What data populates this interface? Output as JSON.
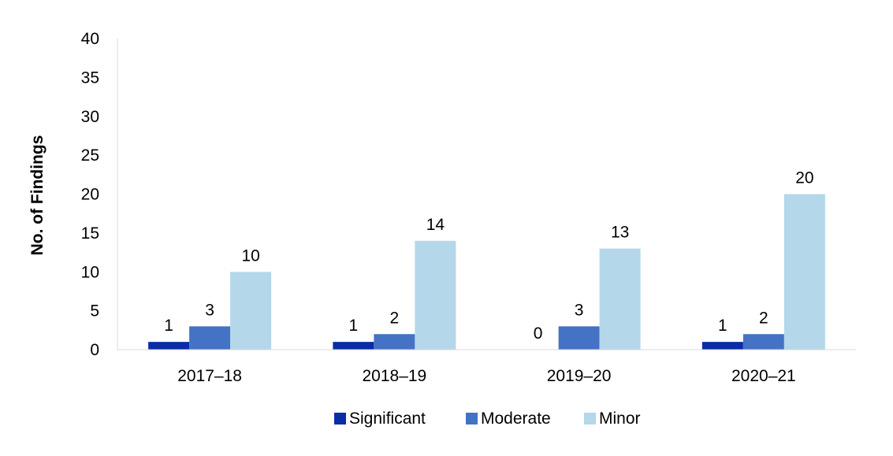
{
  "chart_data": {
    "type": "bar",
    "title": "",
    "xlabel": "",
    "ylabel": "No. of Findings",
    "ylim": [
      0,
      40
    ],
    "yticks": [
      0,
      5,
      10,
      15,
      20,
      25,
      30,
      35,
      40
    ],
    "grid": false,
    "legend_position": "bottom",
    "categories": [
      "2017–18",
      "2018–19",
      "2019–20",
      "2020–21"
    ],
    "series": [
      {
        "name": "Significant",
        "color": "#0a2da6",
        "values": [
          1,
          1,
          0,
          1
        ]
      },
      {
        "name": "Moderate",
        "color": "#4472c4",
        "values": [
          3,
          2,
          3,
          2
        ]
      },
      {
        "name": "Minor",
        "color": "#b4d7ea",
        "values": [
          10,
          14,
          13,
          20
        ]
      }
    ]
  }
}
